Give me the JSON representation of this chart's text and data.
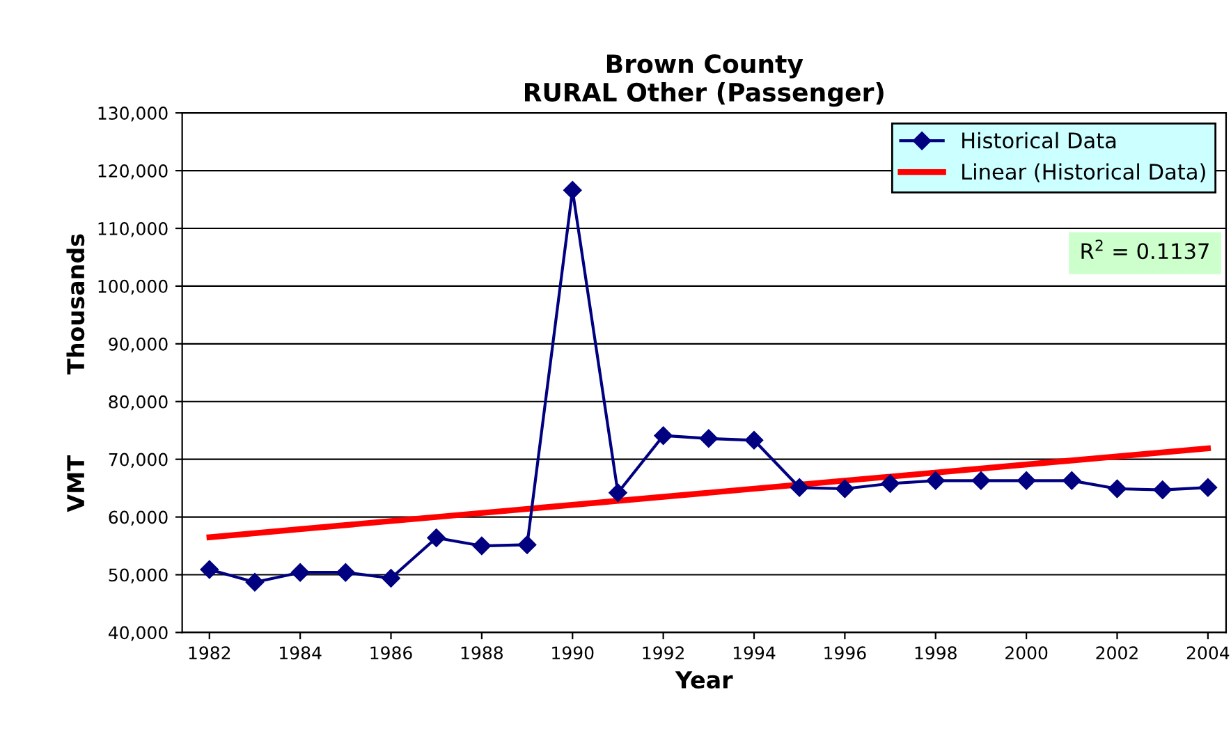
{
  "chart_data": {
    "type": "line",
    "title": "Brown County\nRURAL Other (Passenger)",
    "xlabel": "Year",
    "ylabel": "VMT          Thousands",
    "x": [
      1982,
      1983,
      1984,
      1985,
      1986,
      1987,
      1988,
      1989,
      1990,
      1991,
      1992,
      1993,
      1994,
      1995,
      1996,
      1997,
      1998,
      1999,
      2000,
      2001,
      2002,
      2003,
      2004
    ],
    "series": [
      {
        "name": "Historical Data",
        "color": "#000080",
        "marker": "diamond",
        "values": [
          50900,
          48700,
          50400,
          50400,
          49400,
          56400,
          55000,
          55200,
          116600,
          64200,
          74100,
          73600,
          73300,
          65100,
          64900,
          65800,
          66300,
          66300,
          66300,
          66300,
          64900,
          64700,
          65100
        ]
      },
      {
        "name": "Linear (Historical Data)",
        "type": "line",
        "color": "#ff0000",
        "marker": "none",
        "x": [
          1982,
          2004
        ],
        "values": [
          56500,
          71900
        ]
      }
    ],
    "xlim": [
      1981.4,
      2004.4
    ],
    "xticks": [
      1982,
      1984,
      1986,
      1988,
      1990,
      1992,
      1994,
      1996,
      1998,
      2000,
      2002,
      2004
    ],
    "ylim": [
      40000,
      130000
    ],
    "yticks": [
      {
        "value": 40000,
        "label": "40,000"
      },
      {
        "value": 50000,
        "label": "50,000"
      },
      {
        "value": 60000,
        "label": "60,000"
      },
      {
        "value": 70000,
        "label": "70,000"
      },
      {
        "value": 80000,
        "label": "80,000"
      },
      {
        "value": 90000,
        "label": "90,000"
      },
      {
        "value": 100000,
        "label": "100,000"
      },
      {
        "value": 110000,
        "label": "110,000"
      },
      {
        "value": 120000,
        "label": "120,000"
      },
      {
        "value": 130000,
        "label": "130,000"
      }
    ],
    "grid": "y",
    "legend": "top right",
    "annotations": [
      "R$^{2}$ = 0.1137"
    ]
  }
}
